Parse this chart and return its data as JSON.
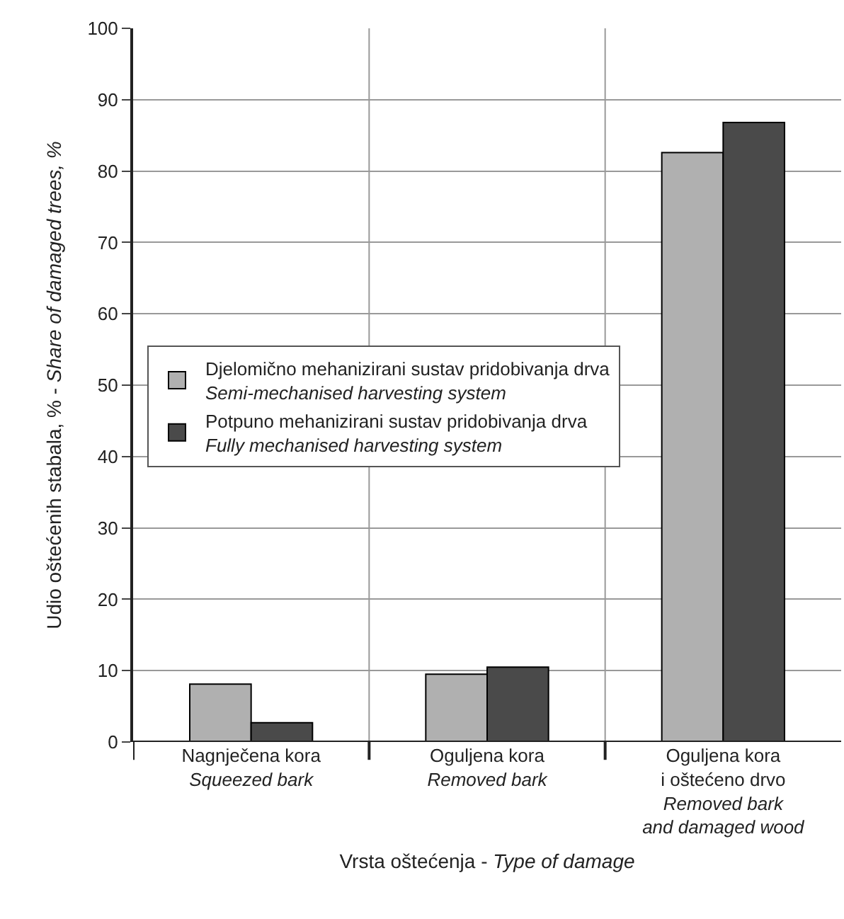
{
  "chart_data": {
    "type": "bar",
    "xlabel": "Vrsta oštećenja - Type of damage",
    "ylabel": "Udio oštećenih stabala, % - Share of damaged trees, %",
    "categories": [
      "Nagnječena kora\nSqueezed bark",
      "Oguljena kora\nRemoved bark",
      "Oguljena kora\ni oštećeno drvo\nRemoved bark\nand damaged wood"
    ],
    "series": [
      {
        "name": "Djelomično mehanizirani sustav pridobivanja drva\nSemi-mechanised harvesting system",
        "color": "#b0b0b0",
        "values": [
          8.1,
          9.5,
          82.6
        ]
      },
      {
        "name": "Potpuno mehanizirani sustav pridobivanja drva\nFully mechanised harvesting system",
        "color": "#4a4a4a",
        "values": [
          2.7,
          10.5,
          86.8
        ]
      }
    ],
    "ylim": [
      0,
      100
    ],
    "yticks": [
      0,
      10,
      20,
      30,
      40,
      50,
      60,
      70,
      80,
      90,
      100
    ],
    "grid": true,
    "legend": "left"
  }
}
